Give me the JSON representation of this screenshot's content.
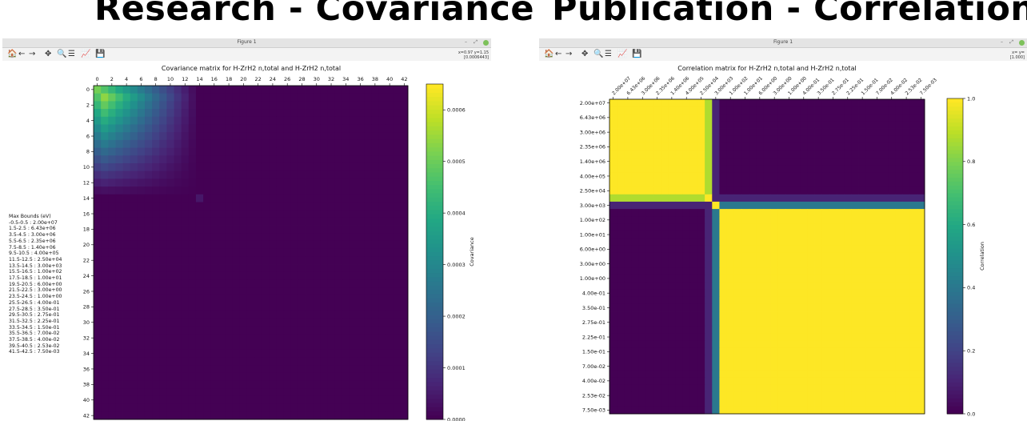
{
  "slide": {
    "left_title": "Research - Covariance",
    "right_title": "Publication - Correlation"
  },
  "left_window": {
    "title": "Figure 1",
    "coord_line1": "x=0.97 y=1.15",
    "coord_line2": "[0.0006443]"
  },
  "right_window": {
    "title": "Figure 1",
    "coord_line1": "x= y=",
    "coord_line2": "[1.000]"
  },
  "window_controls": {
    "minimize": "–",
    "maximize": "⤢"
  },
  "toolbar_icons": [
    "home-icon",
    "back-icon",
    "forward-icon",
    "pan-icon",
    "zoom-icon",
    "configure-icon",
    "edit-axes-icon",
    "save-icon"
  ],
  "toolbar_glyphs": [
    "🏠",
    "←",
    "→",
    "✥",
    "🔍",
    "☰",
    "📈",
    "💾"
  ],
  "legend": {
    "title": "Max Bounds (eV)",
    "items": [
      "-0.5-0.5 : 2.00e+07",
      "1.5-2.5 : 6.43e+06",
      "3.5-4.5 : 3.00e+06",
      "5.5-6.5 : 2.35e+06",
      "7.5-8.5 : 1.40e+06",
      "9.5-10.5 : 4.00e+05",
      "11.5-12.5 : 2.50e+04",
      "13.5-14.5 : 3.00e+03",
      "15.5-16.5 : 1.00e+02",
      "17.5-18.5 : 1.00e+01",
      "19.5-20.5 : 6.00e+00",
      "21.5-22.5 : 3.00e+00",
      "23.5-24.5 : 1.00e+00",
      "25.5-26.5 : 4.00e-01",
      "27.5-28.5 : 3.50e-01",
      "29.5-30.5 : 2.75e-01",
      "31.5-32.5 : 2.25e-01",
      "33.5-34.5 : 1.50e-01",
      "35.5-36.5 : 7.00e-02",
      "37.5-38.5 : 4.00e-02",
      "39.5-40.5 : 2.53e-02",
      "41.5-42.5 : 7.50e-03"
    ]
  },
  "chart_data": [
    {
      "type": "heatmap",
      "title": "Covariance matrix for H-ZrH2 n,total and H-ZrH2 n,total",
      "x_ticks": [
        "0",
        "2",
        "4",
        "6",
        "8",
        "10",
        "12",
        "14",
        "16",
        "18",
        "20",
        "22",
        "24",
        "26",
        "28",
        "30",
        "32",
        "34",
        "36",
        "38",
        "40",
        "42"
      ],
      "y_ticks": [
        "0",
        "2",
        "4",
        "6",
        "8",
        "10",
        "12",
        "14",
        "16",
        "18",
        "20",
        "22",
        "24",
        "26",
        "28",
        "30",
        "32",
        "34",
        "36",
        "38",
        "40",
        "42"
      ],
      "n": 43,
      "colorbar_label": "Covariance",
      "colorbar_ticks": [
        "0.0000",
        "0.0001",
        "0.0002",
        "0.0003",
        "0.0004",
        "0.0005",
        "0.0006"
      ],
      "vmin": 0,
      "vmax": 0.00065,
      "colormap": "viridis",
      "significant_block": [
        0,
        13
      ],
      "peak_value": 0.00064
    },
    {
      "type": "heatmap",
      "title": "Correlation matrix for H-ZrH2 n,total and H-ZrH2 n,total",
      "x_ticks": [
        "2.00e+07",
        "6.43e+06",
        "3.00e+06",
        "2.35e+06",
        "1.40e+06",
        "4.00e+05",
        "2.50e+04",
        "3.00e+03",
        "1.00e+02",
        "1.00e+01",
        "6.00e+00",
        "3.00e+00",
        "1.00e+00",
        "4.00e-01",
        "3.50e-01",
        "2.75e-01",
        "2.25e-01",
        "1.50e-01",
        "7.00e-02",
        "4.00e-02",
        "2.53e-02",
        "7.50e-03"
      ],
      "y_ticks": [
        "2.00e+07",
        "6.43e+06",
        "3.00e+06",
        "2.35e+06",
        "1.40e+06",
        "4.00e+05",
        "2.50e+04",
        "3.00e+03",
        "1.00e+02",
        "1.00e+01",
        "6.00e+00",
        "3.00e+00",
        "1.00e+00",
        "4.00e-01",
        "3.50e-01",
        "2.75e-01",
        "2.25e-01",
        "1.50e-01",
        "7.00e-02",
        "4.00e-02",
        "2.53e-02",
        "7.50e-03"
      ],
      "n": 43,
      "colorbar_label": "Correlation",
      "colorbar_ticks": [
        "0.0",
        "0.2",
        "0.4",
        "0.6",
        "0.8",
        "1.0"
      ],
      "vmin": 0,
      "vmax": 1,
      "colormap": "viridis",
      "blocks": [
        {
          "from": 0,
          "to": 12,
          "value": 1.0
        },
        {
          "from": 15,
          "to": 42,
          "value": 1.0
        }
      ],
      "transition_rows": {
        "13": 0.05,
        "14": 0.4
      }
    }
  ]
}
